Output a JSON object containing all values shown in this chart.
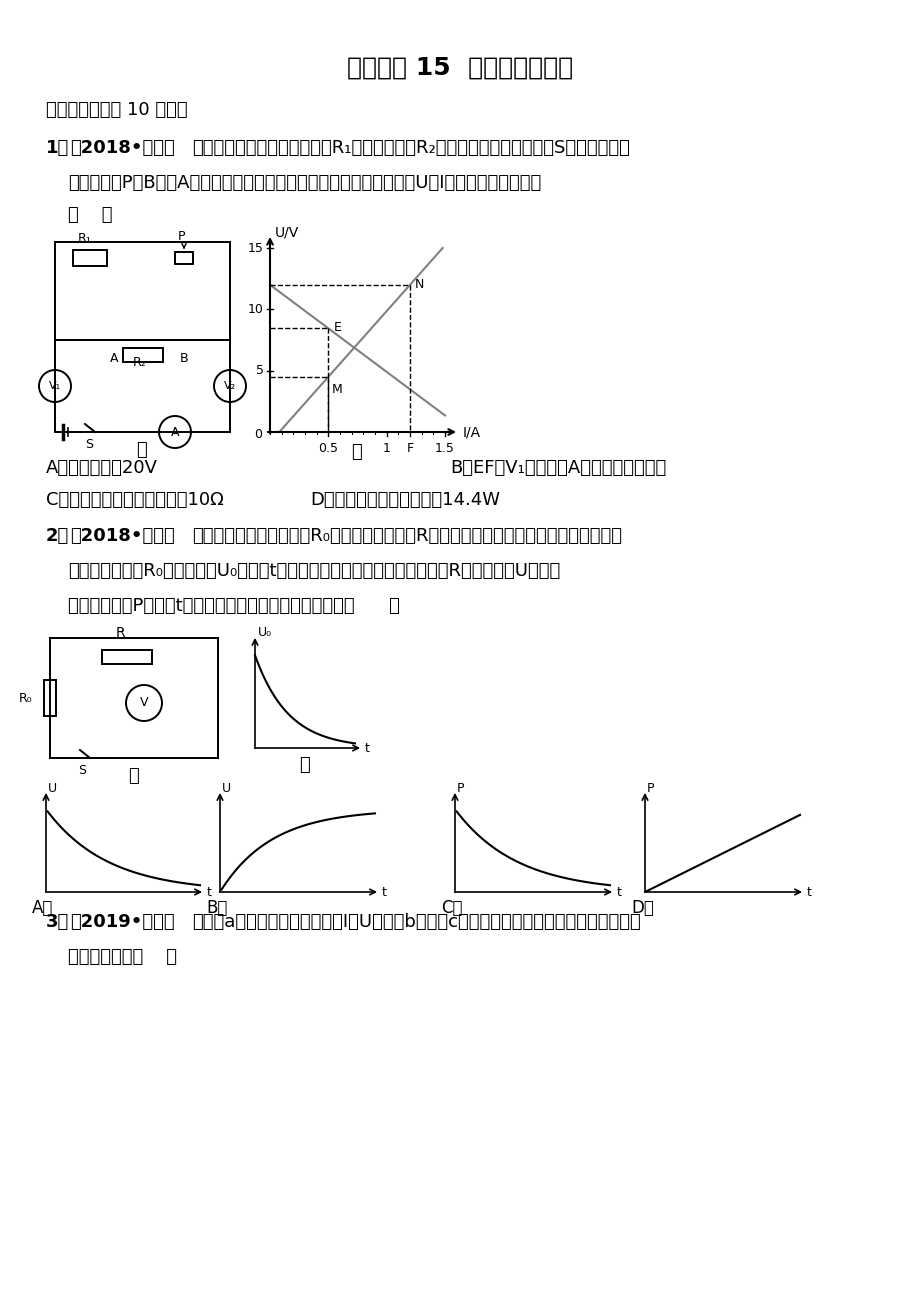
{
  "bg_color": "#ffffff",
  "title": "压轴专题 15  电学图像和方程",
  "section": "一．选择题（共 10 小题）",
  "q1_num": "1．",
  "q1_year": "（2018•常州）",
  "q1_t1": "如图甲所示，电源电压恒定，R₁是定值电阻，R₂是滑动变阻器，闭合开关S，移动滑动变",
  "q1_t2": "阻器的滑片P从B端至A端的过程中，两电压表示数随电流表示数变化的U－I图象如图乙所示，则",
  "q1_t3": "（    ）",
  "q1_A": "A．电源电压为20V",
  "q1_B": "B．EF是V₁表示数随A表示数变化的图象",
  "q1_C": "C．滑动变阻器的最大阻值为10Ω",
  "q1_D": "D．整个电路的最大功率为14.4W",
  "q2_num": "2．",
  "q2_year": "（2018•南通）",
  "q2_t1": "如图甲，电源电压恒定，R₀为定值电阻，电阻R的阻值随环境温度变化而改变。改变环境",
  "q2_t2": "温度，定值电阻R₀两端的电压U₀随温度t变化的关系如图乙所示，则下列描述R两端的电压U、电路",
  "q2_t3": "消耗的总功率P随温度t变化的关系图线中，可能正确的是（      ）",
  "q3_num": "3．",
  "q3_year": "（2019•淮安）",
  "q3_t1": "如图（a）所示是电阻甲和乙的I－U图象（b）、（c）是它们的部分电路连接示意图，下列",
  "q3_t2": "说法错误的是（    ）",
  "jia": "甲",
  "yi": "乙"
}
